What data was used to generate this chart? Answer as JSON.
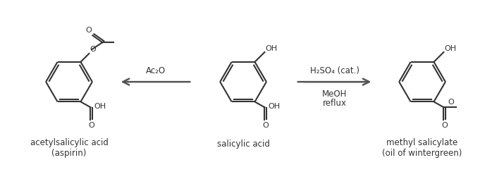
{
  "bg_color": "#ffffff",
  "fig_width": 7.15,
  "fig_height": 2.55,
  "dpi": 100,
  "label_aspirin": "acetylsalicylic acid\n(aspirin)",
  "label_salicylic": "salicylic acid",
  "label_methyl": "methyl salicylate\n(oil of wintergreen)",
  "arrow_left_label": "Ac₂O",
  "arrow_right_label_top": "H₂SO₄ (cat.)",
  "arrow_right_label_mid": "MeOH",
  "arrow_right_label_bot": "reflux",
  "text_color": "#333333",
  "structure_color": "#333333",
  "arrow_color": "#555555",
  "font_size_label": 8.5,
  "font_size_atom": 8.0,
  "font_size_arrow_label": 8.5
}
